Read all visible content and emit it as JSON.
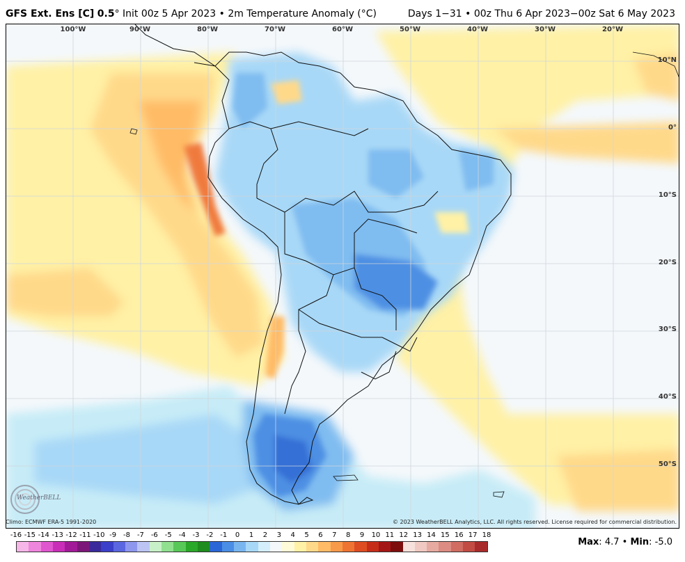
{
  "header": {
    "model": "GFS Ext.  Ens [C]",
    "resolution": "0.5",
    "degree_symbol": "°",
    "init": "Init 00z 5 Apr 2023",
    "bullet": "•",
    "parameter": "2m Temperature Anomaly (°C)",
    "valid": "Days 1−31 • 00z Thu 6 Apr 2023−00z Sat 6 May 2023"
  },
  "map": {
    "region": "South America",
    "longitude_labels": [
      "100°W",
      "90°W",
      "80°W",
      "70°W",
      "60°W",
      "50°W",
      "40°W",
      "30°W",
      "20°W"
    ],
    "latitude_labels": [
      "10°N",
      "0°",
      "10°S",
      "20°S",
      "30°S",
      "40°S",
      "50°S"
    ],
    "colors": {
      "ocean_neutral": "#f4f8fb",
      "warm_light": "#fff5b0",
      "warm_medium": "#ffd98a",
      "warm_strong": "#ffb066",
      "hot": "#f07a3c",
      "cool_light": "#c7ecf7",
      "cool_medium": "#a6dcf5",
      "cool_strong": "#7fbcf0",
      "cold": "#4d8fe3",
      "coldest": "#3470d6"
    }
  },
  "footer": {
    "climo": "Climo: ECMWF ERA-5 1991-2020",
    "copyright": "© 2023 WeatherBELL Analytics, LLC. All rights reserved. License required for commercial distribution."
  },
  "logo": {
    "text": "WeatherBELL"
  },
  "colorbar": {
    "labels": [
      "-16",
      "-15",
      "-14",
      "-13",
      "-12",
      "-11",
      "-10",
      "-9",
      "-8",
      "-7",
      "-6",
      "-5",
      "-4",
      "-3",
      "-2",
      "-1",
      "0",
      "1",
      "2",
      "3",
      "4",
      "5",
      "6",
      "7",
      "8",
      "9",
      "10",
      "11",
      "12",
      "13",
      "14",
      "15",
      "16",
      "17",
      "18"
    ],
    "colors": [
      "#f7b6e8",
      "#ef86dd",
      "#e056cf",
      "#c92eb8",
      "#a21a98",
      "#7c1779",
      "#3a2a9c",
      "#3c3fc9",
      "#5b67e0",
      "#8e97ee",
      "#bcc4f4",
      "#c8f0c8",
      "#90e090",
      "#58c858",
      "#2aa82a",
      "#1f8c1f",
      "#2b66d6",
      "#4a8ee6",
      "#79b6f0",
      "#a8d8f7",
      "#d4eefc",
      "#f4f8fb",
      "#fffbd8",
      "#fff1a6",
      "#ffd98a",
      "#ffbb66",
      "#f79a4a",
      "#ee7433",
      "#de4d22",
      "#c62d19",
      "#a41616",
      "#7e0d0d",
      "#f7e1dc",
      "#efc9c2",
      "#e6aaa0",
      "#dc8c82",
      "#d06c62",
      "#c24b44",
      "#a92a2a"
    ]
  },
  "stats": {
    "max_label": "Max",
    "max_value": "4.7",
    "separator": "•",
    "min_label": "Min",
    "min_value": "-5.0"
  }
}
